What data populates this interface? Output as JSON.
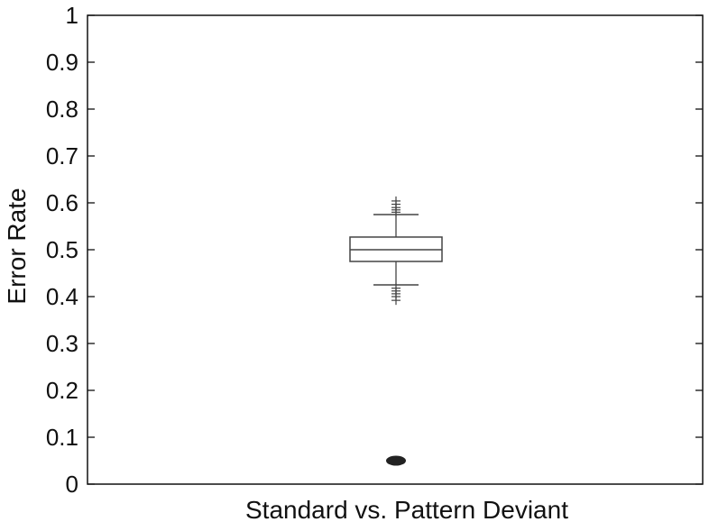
{
  "chart_data": {
    "type": "box",
    "title": "",
    "xlabel": "Standard vs. Pattern Deviant",
    "ylabel": "Error Rate",
    "ylim": [
      0,
      1
    ],
    "yticks": [
      0,
      0.1,
      0.2,
      0.3,
      0.4,
      0.5,
      0.6,
      0.7,
      0.8,
      0.9,
      1
    ],
    "ytick_labels": [
      "0",
      "0.1",
      "0.2",
      "0.3",
      "0.4",
      "0.5",
      "0.6",
      "0.7",
      "0.8",
      "0.9",
      "1"
    ],
    "grid": false,
    "legend": "none",
    "box": {
      "q1": 0.475,
      "median": 0.5,
      "q3": 0.527,
      "whisker_low": 0.425,
      "whisker_high": 0.575,
      "outliers_high": [
        0.58,
        0.585,
        0.59,
        0.597,
        0.604
      ],
      "outliers_low": [
        0.392,
        0.4,
        0.406,
        0.412,
        0.418
      ]
    },
    "point": {
      "value": 0.05
    },
    "colors": {
      "axis": "#111111",
      "box": "#444444",
      "point": "#222222"
    }
  }
}
